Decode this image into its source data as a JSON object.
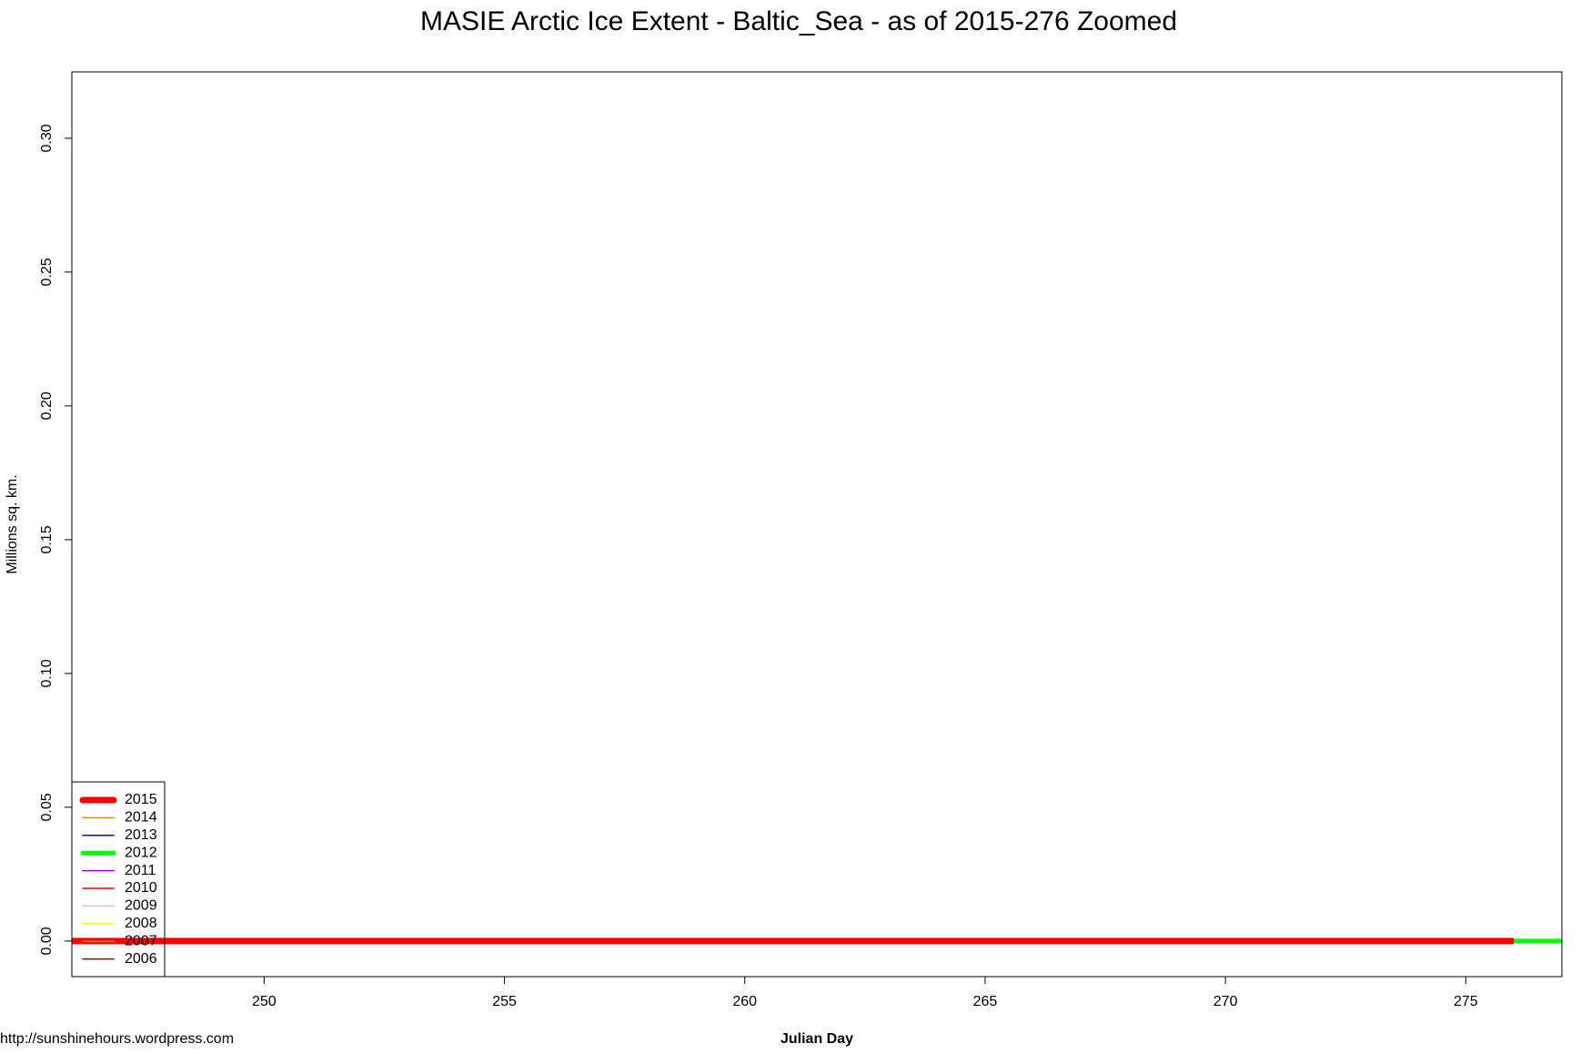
{
  "chart_data": {
    "type": "line",
    "title": "MASIE Arctic Ice Extent - Baltic_Sea - as of 2015-276 Zoomed",
    "x_label": "Julian Day",
    "y_label": "Millions sq. km.",
    "source": "http://sunshinehours.wordpress.com",
    "x": [
      246,
      247,
      248,
      249,
      250,
      251,
      252,
      253,
      254,
      255,
      256,
      257,
      258,
      259,
      260,
      261,
      262,
      263,
      264,
      265,
      266,
      267,
      268,
      269,
      270,
      271,
      272,
      273,
      274,
      275,
      276,
      277
    ],
    "xlim": [
      246,
      277
    ],
    "xticks": [
      250,
      255,
      260,
      265,
      270,
      275
    ],
    "ylim": [
      -0.0133,
      0.3248
    ],
    "yticks": [
      {
        "value": 0,
        "label": "0.00"
      },
      {
        "value": 0.05,
        "label": "0.05"
      },
      {
        "value": 0.1,
        "label": "0.10"
      },
      {
        "value": 0.15,
        "label": "0.15"
      },
      {
        "value": 0.2,
        "label": "0.20"
      },
      {
        "value": 0.25,
        "label": "0.25"
      },
      {
        "value": 0.3,
        "label": "0.30"
      }
    ],
    "legend": "bottom-left",
    "series": [
      {
        "name": "2015",
        "color": "#ff0000",
        "width": 7,
        "values": [
          0,
          0,
          0,
          0,
          0,
          0,
          0,
          0,
          0,
          0,
          0,
          0,
          0,
          0,
          0,
          0,
          0,
          0,
          0,
          0,
          0,
          0,
          0,
          0,
          0,
          0,
          0,
          0,
          0,
          0,
          0,
          null
        ]
      },
      {
        "name": "2014",
        "color": "#ff8c00",
        "width": 1.5,
        "values": [
          0,
          0,
          0,
          0,
          0,
          0,
          0,
          0,
          0,
          0,
          0,
          0,
          0,
          0,
          0,
          0,
          0,
          0,
          0,
          0,
          0,
          0,
          0,
          0,
          0,
          0,
          0,
          0,
          0,
          0,
          0,
          null
        ]
      },
      {
        "name": "2013",
        "color": "#0000ff",
        "width": 1.5,
        "values": [
          0,
          0,
          0,
          0,
          0,
          0,
          0,
          0,
          0,
          0,
          0,
          0,
          0,
          0,
          0,
          0,
          0,
          0,
          0,
          0,
          0,
          0,
          0,
          0,
          0,
          0,
          0,
          0,
          0,
          0,
          0,
          null
        ]
      },
      {
        "name": "2012",
        "color": "#00ff00",
        "width": 5,
        "values": [
          0,
          0,
          0,
          0,
          0,
          0,
          0,
          0,
          0,
          0,
          0,
          0,
          0,
          0,
          0,
          0,
          0,
          0,
          0,
          0,
          0,
          0,
          0,
          0,
          0,
          0,
          0,
          0,
          0,
          0,
          0,
          0
        ]
      },
      {
        "name": "2011",
        "color": "#9400d3",
        "width": 1.5,
        "values": [
          0,
          0,
          0,
          0,
          0,
          0,
          0,
          0,
          0,
          0,
          0,
          0,
          0,
          0,
          0,
          0,
          0,
          0,
          0,
          0,
          0,
          0,
          0,
          0,
          0,
          0,
          0,
          0,
          0,
          0,
          0,
          null
        ]
      },
      {
        "name": "2010",
        "color": "#ee0000",
        "width": 1.5,
        "values": [
          0,
          0,
          0,
          0,
          0,
          0,
          0,
          0,
          0,
          0,
          0,
          0,
          0,
          0,
          0,
          0,
          0,
          0,
          0,
          0,
          0,
          0,
          0,
          0,
          0,
          0,
          0,
          0,
          0,
          0,
          0,
          null
        ]
      },
      {
        "name": "2009",
        "color": "#ffb6c1",
        "width": 1.5,
        "values": [
          0,
          0,
          0,
          0,
          0,
          0,
          0,
          0,
          0,
          0,
          0,
          0,
          0,
          0,
          0,
          0,
          0,
          0,
          0,
          0,
          0,
          0,
          0,
          0,
          0,
          0,
          0,
          0,
          0,
          0,
          0,
          null
        ]
      },
      {
        "name": "2008",
        "color": "#ffff00",
        "width": 1.5,
        "values": [
          0,
          0,
          0,
          0,
          0,
          0,
          0,
          0,
          0,
          0,
          0,
          0,
          0,
          0,
          0,
          0,
          0,
          0,
          0,
          0,
          0,
          0,
          0,
          0,
          0,
          0,
          0,
          0,
          0,
          0,
          0,
          null
        ]
      },
      {
        "name": "2007",
        "color": "#ff7f00",
        "width": 1.5,
        "values": [
          0,
          0,
          0,
          0,
          0,
          0,
          0,
          0,
          0,
          0,
          0,
          0,
          0,
          0,
          0,
          0,
          0,
          0,
          0,
          0,
          0,
          0,
          0,
          0,
          0,
          0,
          0,
          0,
          0,
          0,
          0,
          null
        ]
      },
      {
        "name": "2006",
        "color": "#8b0000",
        "width": 1.5,
        "values": [
          0,
          0,
          0,
          0,
          0,
          0,
          0,
          0,
          0,
          0,
          0,
          0,
          0,
          0,
          0,
          0,
          0,
          0,
          0,
          0,
          0,
          0,
          0,
          0,
          0,
          0,
          0,
          0,
          0,
          0,
          0,
          null
        ]
      }
    ]
  }
}
